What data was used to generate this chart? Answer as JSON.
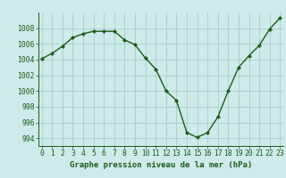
{
  "x": [
    0,
    1,
    2,
    3,
    4,
    5,
    6,
    7,
    8,
    9,
    10,
    11,
    12,
    13,
    14,
    15,
    16,
    17,
    18,
    19,
    20,
    21,
    22,
    23
  ],
  "y": [
    1004.1,
    1004.8,
    1005.7,
    1006.8,
    1007.3,
    1007.6,
    1007.6,
    1007.6,
    1006.5,
    1005.9,
    1004.2,
    1002.8,
    1000.0,
    998.8,
    994.7,
    994.1,
    994.7,
    996.7,
    1000.0,
    1003.0,
    1004.5,
    1005.8,
    1007.9,
    1009.3
  ],
  "line_color": "#1a5c1a",
  "marker": "D",
  "marker_size": 2.2,
  "bg_color": "#ceeaea",
  "grid_color": "#a0c8c8",
  "xlabel": "Graphe pression niveau de la mer (hPa)",
  "xlabel_fontsize": 6.5,
  "ylabel_ticks": [
    994,
    996,
    998,
    1000,
    1002,
    1004,
    1006,
    1008
  ],
  "xlim": [
    -0.3,
    23.3
  ],
  "ylim": [
    993.0,
    1010.0
  ],
  "tick_fontsize": 5.8,
  "line_width": 1.0
}
